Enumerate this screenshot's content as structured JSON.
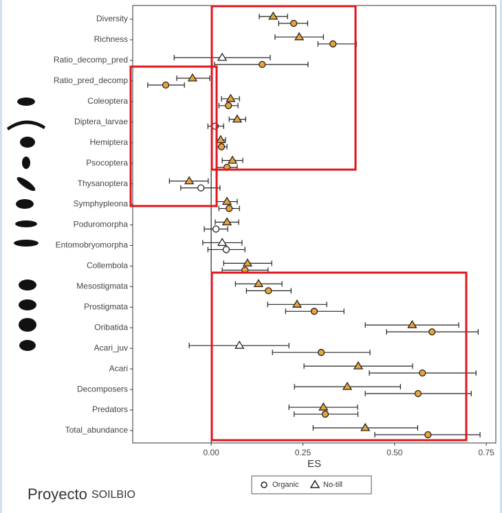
{
  "chart_data": {
    "type": "forest",
    "x_label": "ES",
    "categories": [
      "Diversity",
      "Richness",
      "Ratio_decomp_pred",
      "Ratio_pred_decomp",
      "Coleoptera",
      "Diptera_larvae",
      "Hemiptera",
      "Psocoptera",
      "Thysanoptera",
      "Symphypleona",
      "Poduromorpha",
      "Entomobryomorpha",
      "Collembola",
      "Mesostigmata",
      "Prostigmata",
      "Oribatida",
      "Acari_juv",
      "Acari",
      "Decomposers",
      "Predators",
      "Total_abundance"
    ],
    "series": [
      {
        "name": "Organic",
        "marker": "circle",
        "values": [
          0.225,
          0.332,
          0.139,
          -0.124,
          0.047,
          0.011,
          0.028,
          0.043,
          -0.028,
          0.049,
          0.013,
          0.041,
          0.092,
          0.156,
          0.281,
          0.602,
          0.3,
          0.576,
          0.564,
          0.311,
          0.591
        ],
        "lower": [
          0.184,
          0.291,
          0.009,
          -0.173,
          0.021,
          -0.009,
          0.015,
          0.015,
          -0.083,
          0.021,
          -0.019,
          -0.009,
          0.03,
          0.096,
          0.203,
          0.478,
          0.167,
          0.431,
          0.42,
          0.226,
          0.446
        ],
        "upper": [
          0.263,
          0.396,
          0.264,
          -0.073,
          0.073,
          0.034,
          0.043,
          0.071,
          0.024,
          0.077,
          0.045,
          0.092,
          0.155,
          0.218,
          0.362,
          0.728,
          0.433,
          0.722,
          0.709,
          0.4,
          0.733
        ]
      },
      {
        "name": "No-till",
        "marker": "triangle",
        "values": [
          0.169,
          0.24,
          0.03,
          -0.051,
          0.053,
          0.071,
          0.026,
          0.058,
          -0.06,
          0.043,
          0.043,
          0.03,
          0.099,
          0.129,
          0.234,
          0.548,
          0.077,
          0.401,
          0.371,
          0.306,
          0.42
        ],
        "lower": [
          0.131,
          0.174,
          -0.101,
          -0.094,
          0.028,
          0.049,
          0.013,
          0.03,
          -0.114,
          0.015,
          0.011,
          -0.023,
          0.034,
          0.066,
          0.154,
          0.42,
          -0.06,
          0.253,
          0.227,
          0.212,
          0.278
        ],
        "upper": [
          0.208,
          0.306,
          0.161,
          -0.004,
          0.077,
          0.094,
          0.039,
          0.086,
          -0.008,
          0.071,
          0.075,
          0.084,
          0.165,
          0.193,
          0.315,
          0.675,
          0.212,
          0.549,
          0.516,
          0.399,
          0.563
        ]
      }
    ],
    "significant_color": "#e8a33a",
    "nonsignificant_color": "#ffffff",
    "xlim": [
      -0.214,
      0.776
    ],
    "xticks": [
      {
        "value": 0,
        "label": "0.00"
      },
      {
        "value": 0.25,
        "label": "0.25"
      },
      {
        "value": 0.5,
        "label": "0.50"
      },
      {
        "value": 0.75,
        "label": "0.75"
      }
    ],
    "reference_line": 0
  },
  "footer": {
    "project": "Proyecto",
    "name": "SOILBIO"
  }
}
